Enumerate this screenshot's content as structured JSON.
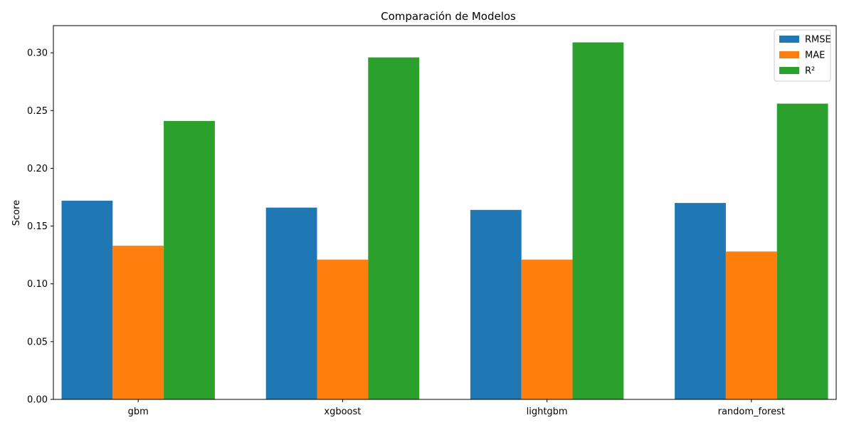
{
  "chart_data": {
    "type": "bar",
    "title": "Comparación de Modelos",
    "xlabel": "",
    "ylabel": "Score",
    "categories": [
      "gbm",
      "xgboost",
      "lightgbm",
      "random_forest"
    ],
    "series": [
      {
        "name": "RMSE",
        "color": "#1f77b4",
        "values": [
          0.172,
          0.166,
          0.164,
          0.17
        ]
      },
      {
        "name": "MAE",
        "color": "#ff7f0e",
        "values": [
          0.133,
          0.121,
          0.121,
          0.128
        ]
      },
      {
        "name": "R²",
        "color": "#2ca02c",
        "values": [
          0.241,
          0.296,
          0.309,
          0.256
        ]
      }
    ],
    "ylim": [
      0,
      0.3235
    ],
    "yticks": [
      "0.00",
      "0.05",
      "0.10",
      "0.15",
      "0.20",
      "0.25",
      "0.30"
    ],
    "grid": false,
    "legend_position": "top-right"
  }
}
